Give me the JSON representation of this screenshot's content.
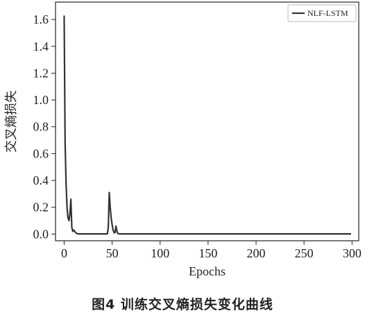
{
  "caption": "图4  训练交叉熵损失变化曲线",
  "chart_data": {
    "type": "line",
    "xlabel": "Epochs",
    "ylabel": "交叉熵损失",
    "xlim": [
      -9,
      307
    ],
    "ylim": [
      -0.05,
      1.73
    ],
    "x_ticks": [
      0,
      50,
      100,
      150,
      200,
      250,
      300
    ],
    "x_tick_labels": [
      "0",
      "50",
      "100",
      "150",
      "200",
      "250",
      "300"
    ],
    "y_ticks": [
      0.0,
      0.2,
      0.4,
      0.6,
      0.8,
      1.0,
      1.2,
      1.4,
      1.6
    ],
    "y_tick_labels": [
      "0.0",
      "0.2",
      "0.4",
      "0.6",
      "0.8",
      "1.0",
      "1.2",
      "1.4",
      "1.6"
    ],
    "grid": false,
    "legend_position": "top-right",
    "series": [
      {
        "name": "NLF-LSTM",
        "color": "#333333",
        "x": [
          0,
          1,
          2,
          3,
          4,
          5,
          6,
          7,
          8,
          9,
          10,
          11,
          12,
          13,
          14,
          15,
          20,
          25,
          30,
          35,
          40,
          45,
          46,
          47,
          48,
          49,
          50,
          51,
          52,
          53,
          54,
          55,
          56,
          57,
          58,
          60,
          70,
          80,
          100,
          150,
          200,
          250,
          299
        ],
        "y": [
          1.63,
          0.68,
          0.38,
          0.2,
          0.12,
          0.1,
          0.15,
          0.26,
          0.05,
          0.02,
          0.03,
          0.02,
          0.01,
          0.005,
          0.002,
          0.001,
          0.001,
          0.001,
          0.001,
          0.001,
          0.001,
          0.001,
          0.05,
          0.31,
          0.2,
          0.12,
          0.07,
          0.03,
          0.01,
          0.01,
          0.06,
          0.02,
          0.005,
          0.002,
          0.001,
          0.001,
          0.001,
          0.001,
          0.001,
          0.001,
          0.001,
          0.001,
          0.001
        ]
      }
    ]
  }
}
